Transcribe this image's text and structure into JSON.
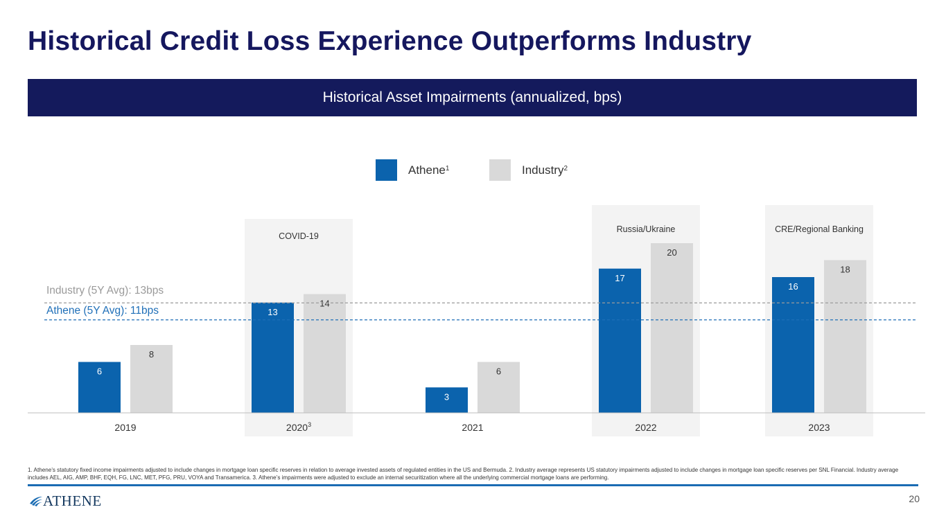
{
  "title": "Historical Credit Loss Experience Outperforms Industry",
  "banner": "Historical Asset Impairments (annualized, bps)",
  "legend": {
    "athene_label": "Athene",
    "athene_sup": "1",
    "industry_label": "Industry",
    "industry_sup": "2"
  },
  "averages": {
    "industry_label": "Industry (5Y Avg): 13bps",
    "athene_label": "Athene (5Y Avg): 11bps",
    "industry_value": 13,
    "athene_value": 11
  },
  "colors": {
    "athene": "#0b63ad",
    "industry": "#d9d9d9",
    "highlight": "#f3f3f3",
    "navy": "#141a5c"
  },
  "chart_data": {
    "type": "bar",
    "title": "Historical Asset Impairments (annualized, bps)",
    "categories": [
      "2019",
      "2020",
      "2021",
      "2022",
      "2023"
    ],
    "category_sups": [
      "",
      "3",
      "",
      "",
      ""
    ],
    "series": [
      {
        "name": "Athene",
        "values": [
          6,
          13,
          3,
          17,
          16
        ]
      },
      {
        "name": "Industry",
        "values": [
          8,
          14,
          6,
          20,
          18
        ]
      }
    ],
    "events": [
      "",
      "COVID-19",
      "",
      "Russia/Ukraine",
      "CRE/Regional Banking"
    ],
    "ylim": [
      0,
      20
    ],
    "xlabel": "",
    "ylabel": ""
  },
  "footnote": "1. Athene’s statutory fixed income impairments adjusted to include changes in mortgage loan specific reserves in relation to average invested assets of regulated entities in the US and Bermuda. 2. Industry average represents US statutory impairments adjusted to include changes in mortgage loan specific reserves per SNL Financial. Industry average includes AEL, AIG, AMP, BHF, EQH, FG, LNC, MET, PFG, PRU, VOYA and Transamerica. 3. Athene’s impairments were adjusted to exclude an internal securitization where all the underlying commercial mortgage loans are performing.",
  "logo_text": "ATHENE",
  "page_number": "20"
}
